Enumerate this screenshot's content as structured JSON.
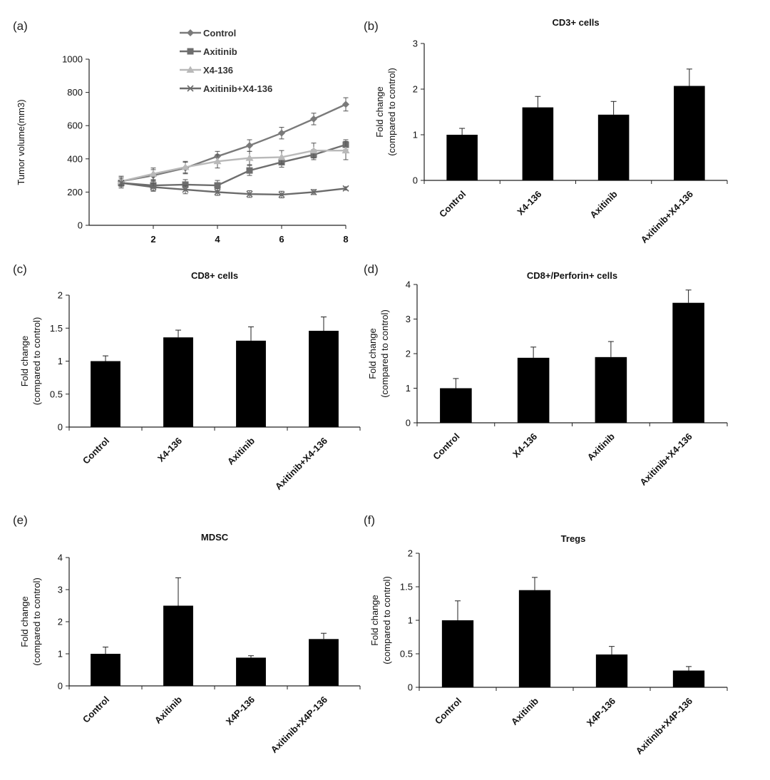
{
  "chart_data": [
    {
      "panel": "(a)",
      "type": "line",
      "title": "",
      "xlabel": "",
      "ylabel": "Tumor volume(mm3)",
      "x": [
        1,
        2,
        3,
        4,
        5,
        6,
        7,
        8
      ],
      "xticks": [
        2,
        4,
        6,
        8
      ],
      "xlim": [
        0,
        8
      ],
      "ylim": [
        0,
        1000
      ],
      "yticks": [
        0,
        200,
        400,
        600,
        800,
        1000
      ],
      "legend": "top-left",
      "series": [
        {
          "name": "Control",
          "color": "#7a7a7a",
          "marker": "diamond",
          "values": [
            265,
            300,
            345,
            415,
            480,
            555,
            640,
            728
          ],
          "errors": [
            30,
            35,
            35,
            30,
            35,
            35,
            35,
            40
          ]
        },
        {
          "name": "Axitinib",
          "color": "#6e6e6e",
          "marker": "square",
          "values": [
            255,
            240,
            245,
            240,
            330,
            380,
            425,
            485
          ],
          "errors": [
            30,
            30,
            30,
            30,
            30,
            30,
            30,
            30
          ]
        },
        {
          "name": "X4-136",
          "color": "#b9b9b9",
          "marker": "triangle",
          "values": [
            265,
            310,
            350,
            385,
            405,
            410,
            450,
            450
          ],
          "errors": [
            30,
            35,
            35,
            40,
            40,
            40,
            45,
            55
          ]
        },
        {
          "name": "Axitinib+X4-136",
          "color": "#6b6b6b",
          "marker": "x",
          "values": [
            255,
            230,
            215,
            200,
            188,
            185,
            200,
            222
          ],
          "errors": [
            30,
            25,
            25,
            20,
            20,
            20,
            15,
            10
          ]
        }
      ]
    },
    {
      "panel": "(b)",
      "type": "bar",
      "title": "CD3+ cells",
      "ylabel": [
        "Fold change",
        "(compared to control)"
      ],
      "categories": [
        "Control",
        "X4-136",
        "Axitinib",
        "Axitinib+X4-136"
      ],
      "values": [
        1.0,
        1.6,
        1.44,
        2.07
      ],
      "errors": [
        0.14,
        0.24,
        0.29,
        0.37
      ],
      "ylim": [
        0,
        3
      ],
      "yticks": [
        0,
        1,
        2,
        3
      ]
    },
    {
      "panel": "(c)",
      "type": "bar",
      "title": "CD8+ cells",
      "ylabel": [
        "Fold change",
        "(compared to control)"
      ],
      "categories": [
        "Control",
        "X4-136",
        "Axitinib",
        "Axitinib+X4-136"
      ],
      "values": [
        1.0,
        1.36,
        1.31,
        1.46
      ],
      "errors": [
        0.08,
        0.11,
        0.21,
        0.21
      ],
      "ylim": [
        0,
        2
      ],
      "yticks": [
        0,
        0.5,
        1,
        1.5,
        2
      ]
    },
    {
      "panel": "(d)",
      "type": "bar",
      "title": "CD8+/Perforin+ cells",
      "ylabel": [
        "Fold change",
        "(compared to control)"
      ],
      "categories": [
        "Control",
        "X4-136",
        "Axitinib",
        "Axitinib+X4-136"
      ],
      "values": [
        1.0,
        1.88,
        1.9,
        3.47
      ],
      "errors": [
        0.28,
        0.31,
        0.45,
        0.37
      ],
      "ylim": [
        0,
        4
      ],
      "yticks": [
        0,
        1,
        2,
        3,
        4
      ]
    },
    {
      "panel": "(e)",
      "type": "bar",
      "title": "MDSC",
      "ylabel": [
        "Fold change",
        "(compared to control)"
      ],
      "categories": [
        "Control",
        "Axitinib",
        "X4P-136",
        "Axitinib+X4P-136"
      ],
      "values": [
        1.0,
        2.5,
        0.88,
        1.46
      ],
      "errors": [
        0.21,
        0.87,
        0.06,
        0.18
      ],
      "ylim": [
        0,
        4
      ],
      "yticks": [
        0,
        1,
        2,
        3,
        4
      ]
    },
    {
      "panel": "(f)",
      "type": "bar",
      "title": "Tregs",
      "ylabel": [
        "Fold change",
        "(compared to control)"
      ],
      "categories": [
        "Control",
        "Axitinib",
        "X4P-136",
        "Axitinib+X4P-136"
      ],
      "values": [
        1.0,
        1.45,
        0.49,
        0.25
      ],
      "errors": [
        0.29,
        0.19,
        0.12,
        0.06
      ],
      "ylim": [
        0,
        2
      ],
      "yticks": [
        0,
        0.5,
        1,
        1.5,
        2
      ]
    }
  ]
}
